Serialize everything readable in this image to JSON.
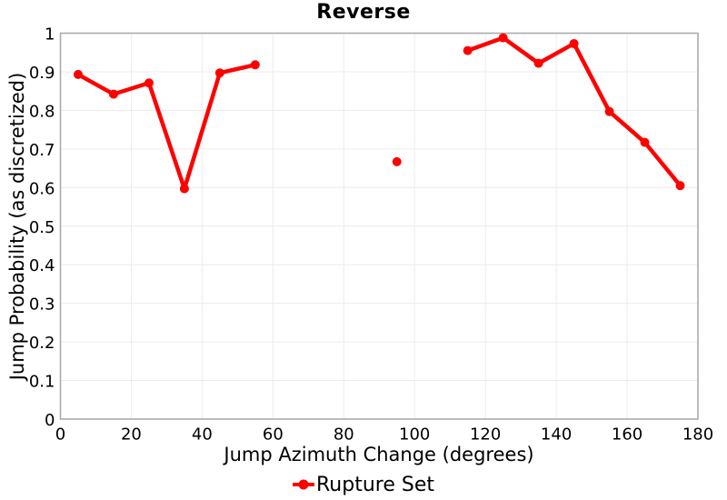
{
  "chart_data": {
    "type": "line",
    "title": "Reverse",
    "xlabel": "Jump Azimuth Change (degrees)",
    "ylabel": "Jump Probability (as discretized)",
    "xlim": [
      0,
      180
    ],
    "ylim": [
      0,
      1
    ],
    "grid": true,
    "legend_position": "bottom",
    "x_ticks": {
      "values": [
        0,
        20,
        40,
        60,
        80,
        100,
        120,
        140,
        160,
        180
      ],
      "labels": [
        "0",
        "20",
        "40",
        "60",
        "80",
        "100",
        "120",
        "140",
        "160",
        "180"
      ]
    },
    "y_ticks": {
      "values": [
        0,
        0.1,
        0.2,
        0.3,
        0.4,
        0.5,
        0.6,
        0.7,
        0.8,
        0.9,
        1
      ],
      "labels": [
        "0",
        "0.1",
        "0.2",
        "0.3",
        "0.4",
        "0.5",
        "0.6",
        "0.7",
        "0.8",
        "0.9",
        "1"
      ]
    },
    "series": [
      {
        "name": "Rupture Set",
        "color": "#ff0000",
        "marker": "circle",
        "segments": [
          {
            "x": [
              5,
              15,
              25,
              35,
              45,
              55
            ],
            "y": [
              0.893,
              0.842,
              0.871,
              0.597,
              0.897,
              0.918
            ]
          },
          {
            "x": [
              95
            ],
            "y": [
              0.667
            ]
          },
          {
            "x": [
              115,
              125,
              135,
              145,
              155,
              165,
              175
            ],
            "y": [
              0.955,
              0.988,
              0.922,
              0.973,
              0.797,
              0.717,
              0.605
            ]
          }
        ]
      }
    ],
    "styles": {
      "series_color": "#ff0000",
      "axis_border_color": "#ababab",
      "grid_color": "#ececec",
      "text_color": "#000000",
      "plot_background": "#ffffff"
    }
  }
}
